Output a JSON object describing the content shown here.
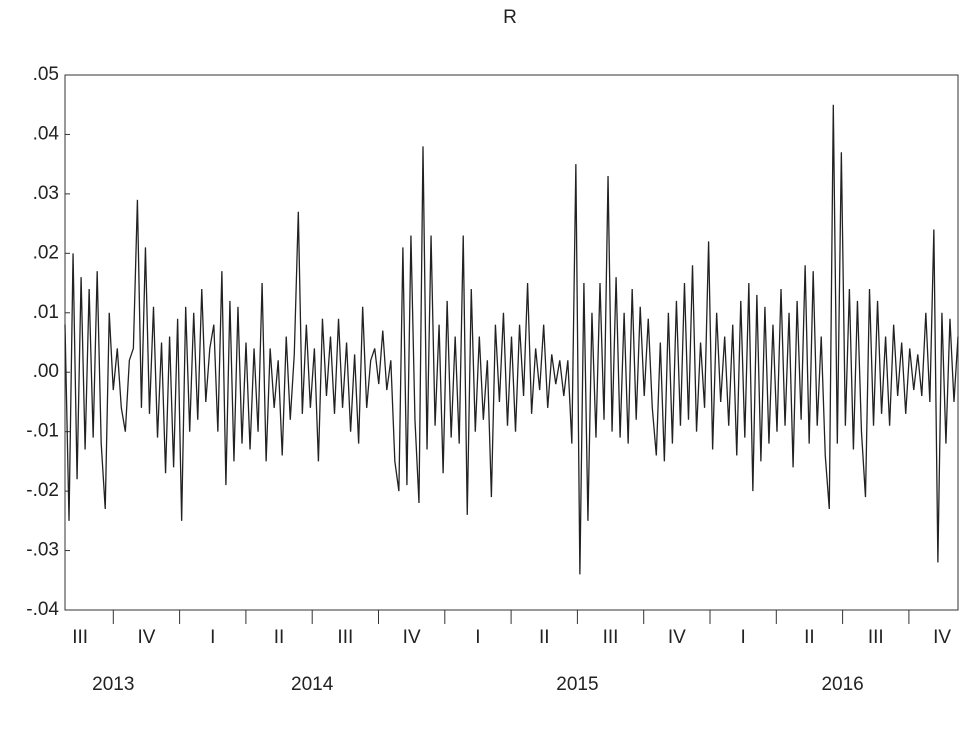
{
  "chart_data": {
    "type": "line",
    "title": "R",
    "ylim": [
      -0.04,
      0.05
    ],
    "yticks": [
      {
        "value": -0.04,
        "label": "-.04"
      },
      {
        "value": -0.03,
        "label": "-.03"
      },
      {
        "value": -0.02,
        "label": "-.02"
      },
      {
        "value": -0.01,
        "label": "-.01"
      },
      {
        "value": 0,
        "label": ".00"
      },
      {
        "value": 0.01,
        "label": ".01"
      },
      {
        "value": 0.02,
        "label": ".02"
      },
      {
        "value": 0.03,
        "label": ".03"
      },
      {
        "value": 0.04,
        "label": ".04"
      },
      {
        "value": 0.05,
        "label": ".05"
      }
    ],
    "years": [
      {
        "label": "2013",
        "quarters": [
          "III",
          "IV"
        ]
      },
      {
        "label": "2014",
        "quarters": [
          "I",
          "II",
          "III",
          "IV"
        ]
      },
      {
        "label": "2015",
        "quarters": [
          "I",
          "II",
          "III",
          "IV"
        ]
      },
      {
        "label": "2016",
        "quarters": [
          "I",
          "II",
          "III",
          "IV"
        ]
      }
    ],
    "color": "#222222",
    "values": [
      0.008,
      -0.025,
      0.02,
      -0.018,
      0.016,
      -0.013,
      0.014,
      -0.011,
      0.017,
      -0.012,
      -0.023,
      0.01,
      -0.003,
      0.004,
      -0.006,
      -0.01,
      0.002,
      0.004,
      0.029,
      -0.006,
      0.021,
      -0.007,
      0.011,
      -0.011,
      0.005,
      -0.017,
      0.006,
      -0.016,
      0.009,
      -0.025,
      0.011,
      -0.01,
      0.01,
      -0.008,
      0.014,
      -0.005,
      0.004,
      0.008,
      -0.01,
      0.017,
      -0.019,
      0.012,
      -0.015,
      0.011,
      -0.012,
      0.005,
      -0.013,
      0.004,
      -0.01,
      0.015,
      -0.015,
      0.004,
      -0.006,
      0.002,
      -0.014,
      0.006,
      -0.008,
      0.003,
      0.027,
      -0.007,
      0.008,
      -0.006,
      0.004,
      -0.015,
      0.009,
      -0.004,
      0.006,
      -0.007,
      0.009,
      -0.006,
      0.005,
      -0.01,
      0.003,
      -0.012,
      0.011,
      -0.006,
      0.002,
      0.004,
      -0.002,
      0.007,
      -0.003,
      0.002,
      -0.015,
      -0.02,
      0.021,
      -0.019,
      0.023,
      -0.008,
      -0.022,
      0.038,
      -0.013,
      0.023,
      -0.009,
      0.008,
      -0.017,
      0.012,
      -0.011,
      0.006,
      -0.012,
      0.023,
      -0.024,
      0.014,
      -0.01,
      0.006,
      -0.008,
      0.002,
      -0.021,
      0.008,
      -0.005,
      0.01,
      -0.009,
      0.006,
      -0.01,
      0.008,
      -0.004,
      0.015,
      -0.007,
      0.004,
      -0.003,
      0.008,
      -0.006,
      0.003,
      -0.002,
      0.002,
      -0.004,
      0.002,
      -0.012,
      0.035,
      -0.034,
      0.015,
      -0.025,
      0.01,
      -0.011,
      0.015,
      -0.008,
      0.033,
      -0.01,
      0.016,
      -0.011,
      0.01,
      -0.012,
      0.014,
      -0.008,
      0.011,
      -0.004,
      0.009,
      -0.006,
      -0.014,
      0.005,
      -0.015,
      0.01,
      -0.012,
      0.012,
      -0.009,
      0.015,
      -0.008,
      0.018,
      -0.01,
      0.005,
      -0.006,
      0.022,
      -0.013,
      0.01,
      -0.005,
      0.006,
      -0.009,
      0.008,
      -0.014,
      0.012,
      -0.011,
      0.015,
      -0.02,
      0.013,
      -0.015,
      0.011,
      -0.012,
      0.008,
      -0.01,
      0.014,
      -0.009,
      0.01,
      -0.016,
      0.012,
      -0.008,
      0.018,
      -0.012,
      0.017,
      -0.009,
      0.006,
      -0.014,
      -0.023,
      0.045,
      -0.012,
      0.037,
      -0.009,
      0.014,
      -0.013,
      0.012,
      -0.01,
      -0.021,
      0.014,
      -0.009,
      0.012,
      -0.007,
      0.006,
      -0.009,
      0.008,
      -0.004,
      0.005,
      -0.007,
      0.004,
      -0.003,
      0.003,
      -0.004,
      0.01,
      -0.005,
      0.024,
      -0.032,
      0.01,
      -0.012,
      0.009,
      -0.005,
      0.006
    ]
  }
}
